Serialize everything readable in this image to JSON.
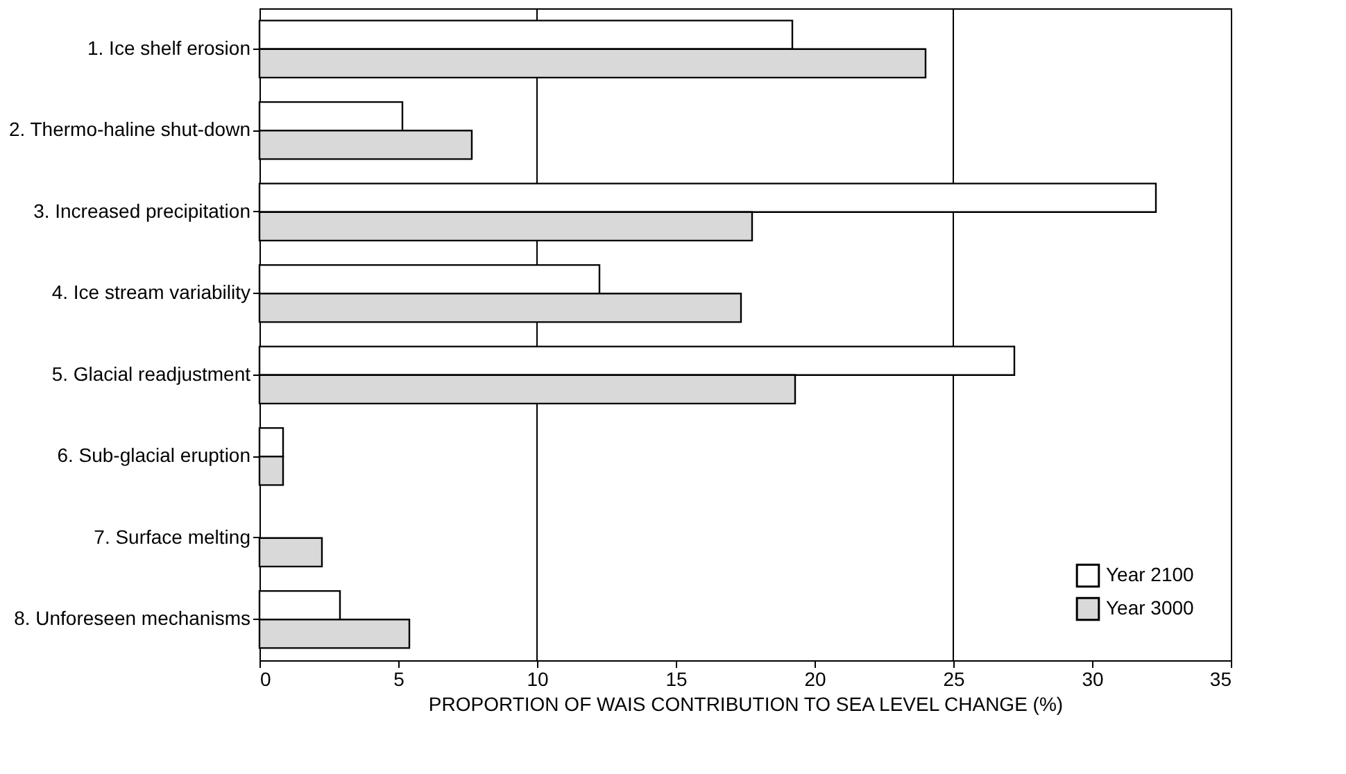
{
  "chart_data": {
    "type": "bar",
    "orientation": "horizontal",
    "xlabel": "PROPORTION OF WAIS CONTRIBUTION TO SEA LEVEL CHANGE (%)",
    "categories": [
      "1. Ice shelf erosion",
      "2. Thermo-haline shut-down",
      "3. Increased precipitation",
      "4. Ice stream variability",
      "5. Glacial readjustment",
      "6. Sub-glacial eruption",
      "7. Surface melting",
      "8. Unforeseen mechanisms"
    ],
    "series": [
      {
        "name": "Year 2100",
        "color": "#ffffff",
        "values": [
          19.2,
          5.15,
          32.3,
          12.25,
          27.2,
          0.85,
          null,
          2.9
        ]
      },
      {
        "name": "Year 3000",
        "color": "#d9d9d9",
        "values": [
          24.0,
          7.65,
          17.75,
          17.35,
          19.3,
          0.85,
          2.25,
          5.4
        ]
      }
    ],
    "xlim": [
      0,
      35
    ],
    "xticks": [
      0,
      5,
      10,
      15,
      20,
      25,
      30,
      35
    ],
    "ref_lines": [
      {
        "axis": "x",
        "value": 10,
        "color": "#000000"
      },
      {
        "axis": "x",
        "value": 25,
        "color": "#000000"
      }
    ],
    "legend": "bottom right",
    "grid": false
  }
}
